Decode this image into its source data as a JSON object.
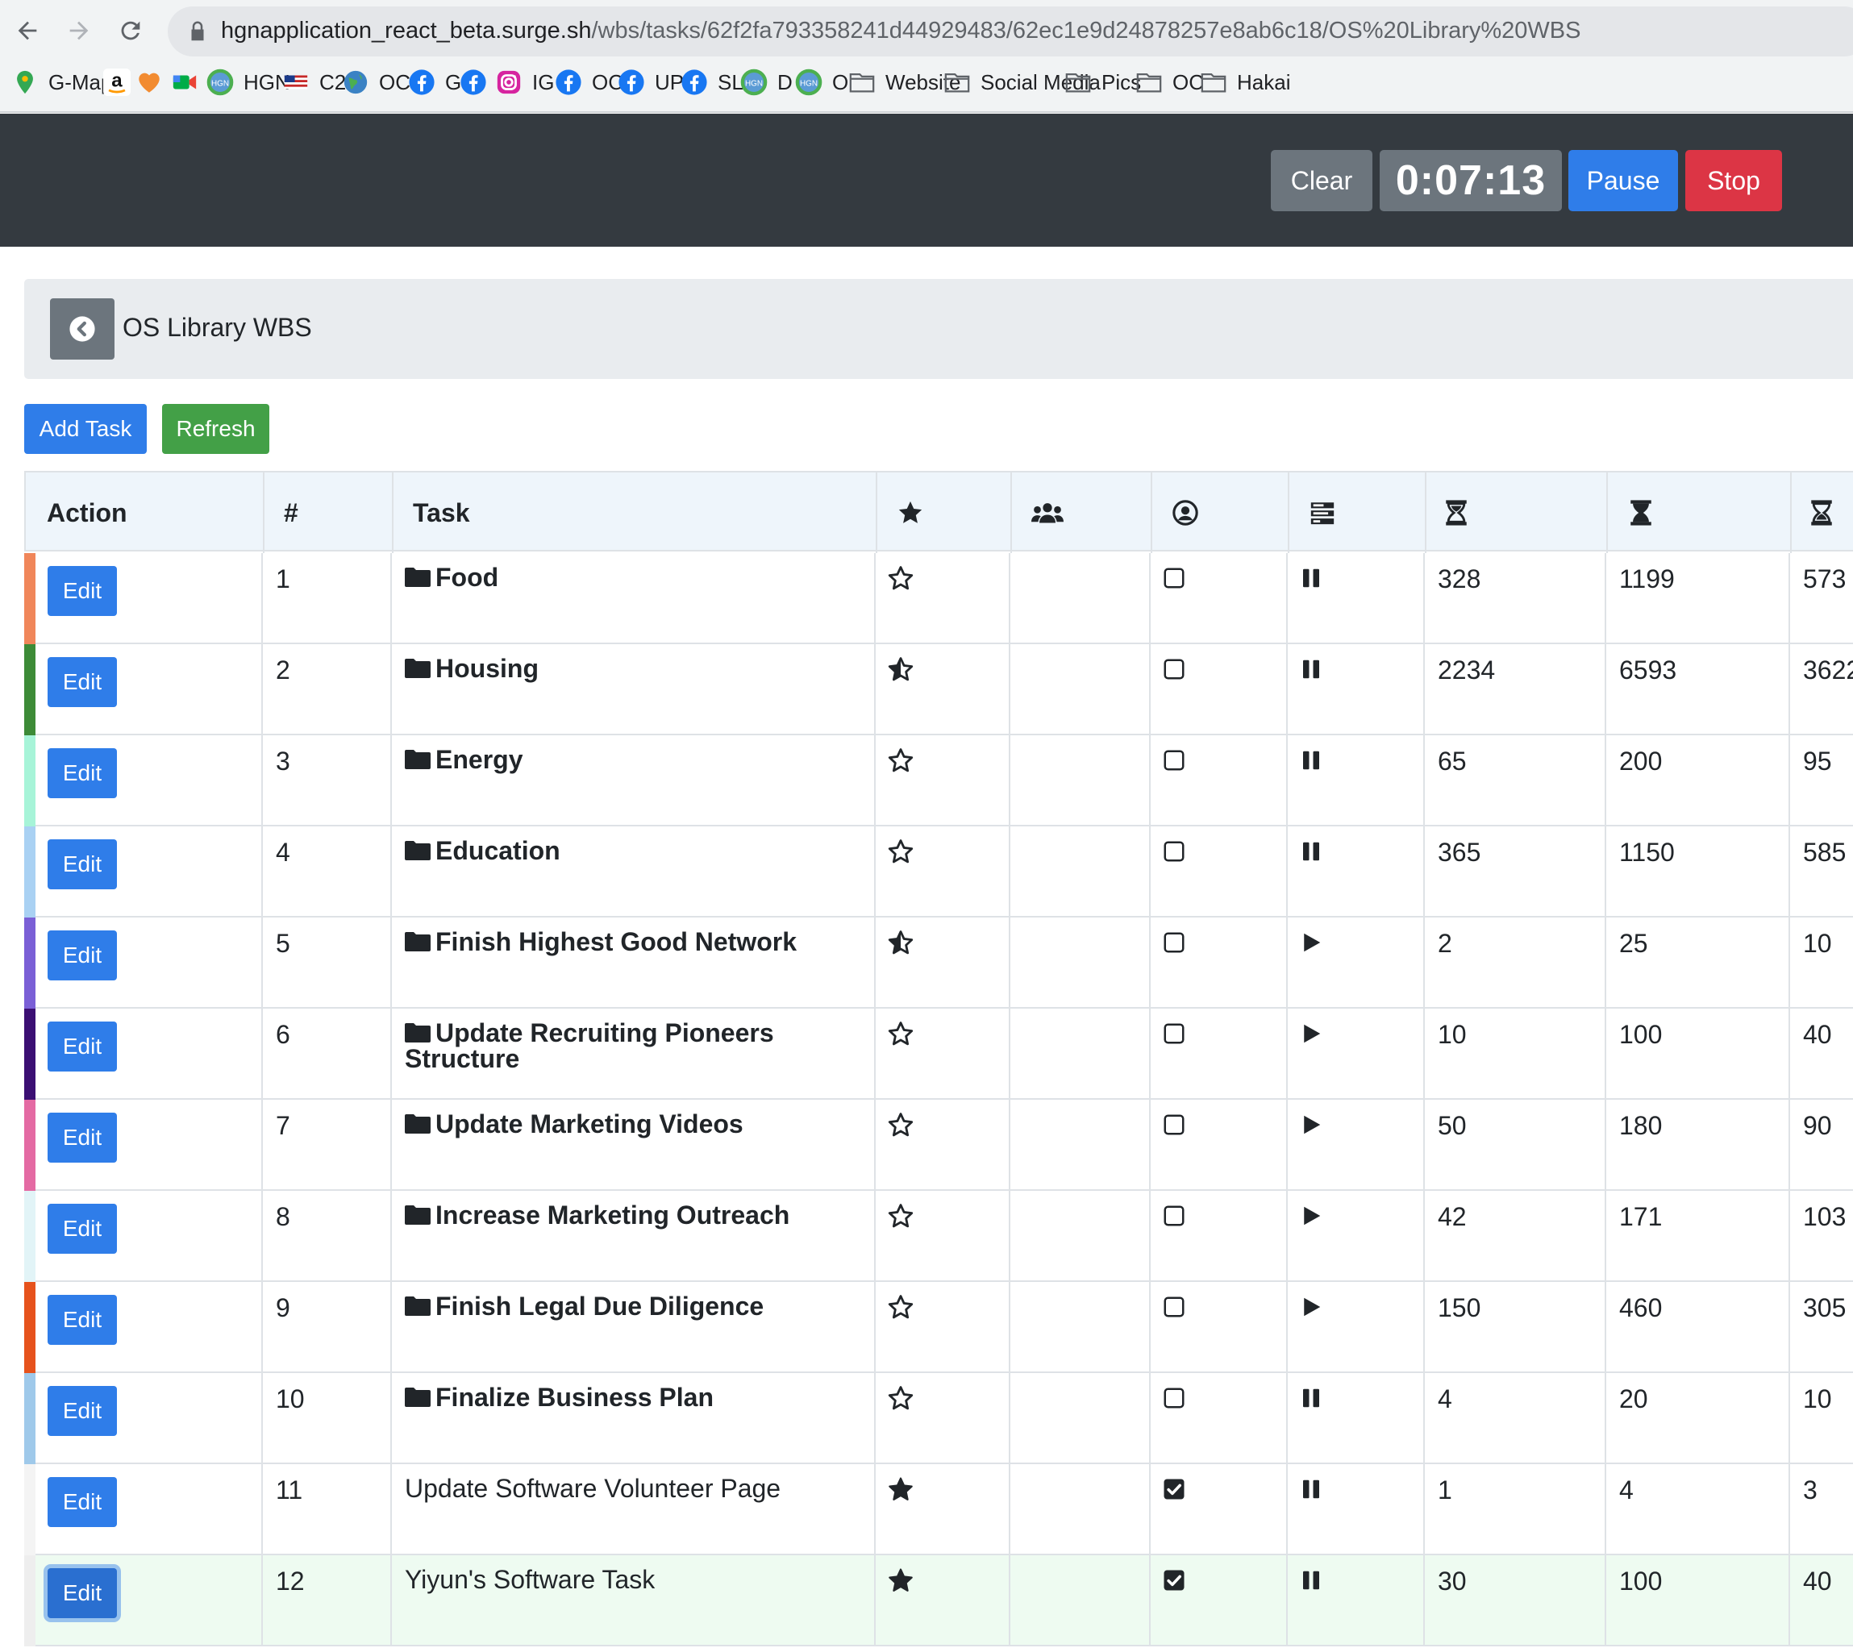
{
  "browser": {
    "url_host": "hgnapplication_react_beta.surge.sh",
    "url_path": "/wbs/tasks/62f2fa793358241d44929483/62ec1e9d24878257e8ab6c18/OS%20Library%20WBS",
    "bookmarks": [
      {
        "label": "G-Maps",
        "icon": "maps-icon"
      },
      {
        "label": "",
        "icon": "amazon-icon"
      },
      {
        "label": "",
        "icon": "heart-icon"
      },
      {
        "label": "",
        "icon": "meet-icon"
      },
      {
        "label": "HGN",
        "icon": "hgn-icon"
      },
      {
        "label": "C2",
        "icon": "flag-icon"
      },
      {
        "label": "OC",
        "icon": "globe-icon"
      },
      {
        "label": "G",
        "icon": "facebook-icon"
      },
      {
        "label": "",
        "icon": "facebook-icon"
      },
      {
        "label": "IG",
        "icon": "instagram-icon"
      },
      {
        "label": "OC",
        "icon": "facebook-icon"
      },
      {
        "label": "UP",
        "icon": "facebook-icon"
      },
      {
        "label": "SL",
        "icon": "facebook-icon"
      },
      {
        "label": "D",
        "icon": "hgn-icon"
      },
      {
        "label": "O",
        "icon": "hgn-icon"
      },
      {
        "label": "Website",
        "icon": "folder-icon"
      },
      {
        "label": "Social Media",
        "icon": "folder-icon"
      },
      {
        "label": "Pics",
        "icon": "folder-icon"
      },
      {
        "label": "OC",
        "icon": "folder-icon"
      },
      {
        "label": "Hakai",
        "icon": "folder-icon"
      }
    ]
  },
  "header": {
    "clear_label": "Clear",
    "timer": "0:07:13",
    "pause_label": "Pause",
    "stop_label": "Stop"
  },
  "breadcrumb": {
    "title": "OS Library WBS"
  },
  "actions": {
    "add_task_label": "Add Task",
    "refresh_label": "Refresh"
  },
  "table": {
    "headers": {
      "action": "Action",
      "number": "#",
      "task": "Task",
      "priority_icon": "star-icon",
      "resources_icon": "users-icon",
      "assigned_icon": "user-circle-icon",
      "status_icon": "tasks-icon",
      "hours_best_icon": "hourglass-start-icon",
      "hours_worst_icon": "hourglass-half-icon",
      "hours_most_icon": "hourglass-end-icon"
    },
    "edit_label": "Edit",
    "rows": [
      {
        "num": "1",
        "task": "Food",
        "bold": true,
        "star": "empty",
        "assigned": false,
        "status": "pause",
        "best": "328",
        "worst": "1199",
        "most": "573",
        "color": "#f0865a"
      },
      {
        "num": "2",
        "task": "Housing",
        "bold": true,
        "star": "half",
        "assigned": false,
        "status": "pause",
        "best": "2234",
        "worst": "6593",
        "most": "3622",
        "color": "#3d8b37"
      },
      {
        "num": "3",
        "task": "Energy",
        "bold": true,
        "star": "empty",
        "assigned": false,
        "status": "pause",
        "best": "65",
        "worst": "200",
        "most": "95",
        "color": "#a7f4d8"
      },
      {
        "num": "4",
        "task": "Education",
        "bold": true,
        "star": "empty",
        "assigned": false,
        "status": "pause",
        "best": "365",
        "worst": "1150",
        "most": "585",
        "color": "#a9d1f3"
      },
      {
        "num": "5",
        "task": "Finish Highest Good Network",
        "bold": true,
        "star": "half",
        "assigned": false,
        "status": "play",
        "best": "2",
        "worst": "25",
        "most": "10",
        "color": "#7a5fd6"
      },
      {
        "num": "6",
        "task": "Update Recruiting Pioneers Structure",
        "bold": true,
        "star": "empty",
        "assigned": false,
        "status": "play",
        "best": "10",
        "worst": "100",
        "most": "40",
        "color": "#3b0f73"
      },
      {
        "num": "7",
        "task": "Update Marketing Videos",
        "bold": true,
        "star": "empty",
        "assigned": false,
        "status": "play",
        "best": "50",
        "worst": "180",
        "most": "90",
        "color": "#e46aa3"
      },
      {
        "num": "8",
        "task": "Increase Marketing Outreach",
        "bold": true,
        "star": "empty",
        "assigned": false,
        "status": "play",
        "best": "42",
        "worst": "171",
        "most": "103",
        "color": "#e2f4f7"
      },
      {
        "num": "9",
        "task": "Finish Legal Due Diligence",
        "bold": true,
        "star": "empty",
        "assigned": false,
        "status": "play",
        "best": "150",
        "worst": "460",
        "most": "305",
        "color": "#e6521c"
      },
      {
        "num": "10",
        "task": "Finalize Business Plan",
        "bold": true,
        "star": "empty",
        "assigned": false,
        "status": "pause",
        "best": "4",
        "worst": "20",
        "most": "10",
        "color": "#9fc9ea"
      },
      {
        "num": "11",
        "task": "Update Software Volunteer Page",
        "bold": false,
        "star": "full",
        "assigned": true,
        "status": "pause",
        "best": "1",
        "worst": "4",
        "most": "3",
        "color": "#f4f4f4"
      },
      {
        "num": "12",
        "task": "Yiyun's Software Task",
        "bold": false,
        "star": "full",
        "assigned": true,
        "status": "pause",
        "best": "30",
        "worst": "100",
        "most": "40",
        "color": "#eeeeee",
        "highlight": "#eefbf1",
        "focused": true
      }
    ]
  }
}
